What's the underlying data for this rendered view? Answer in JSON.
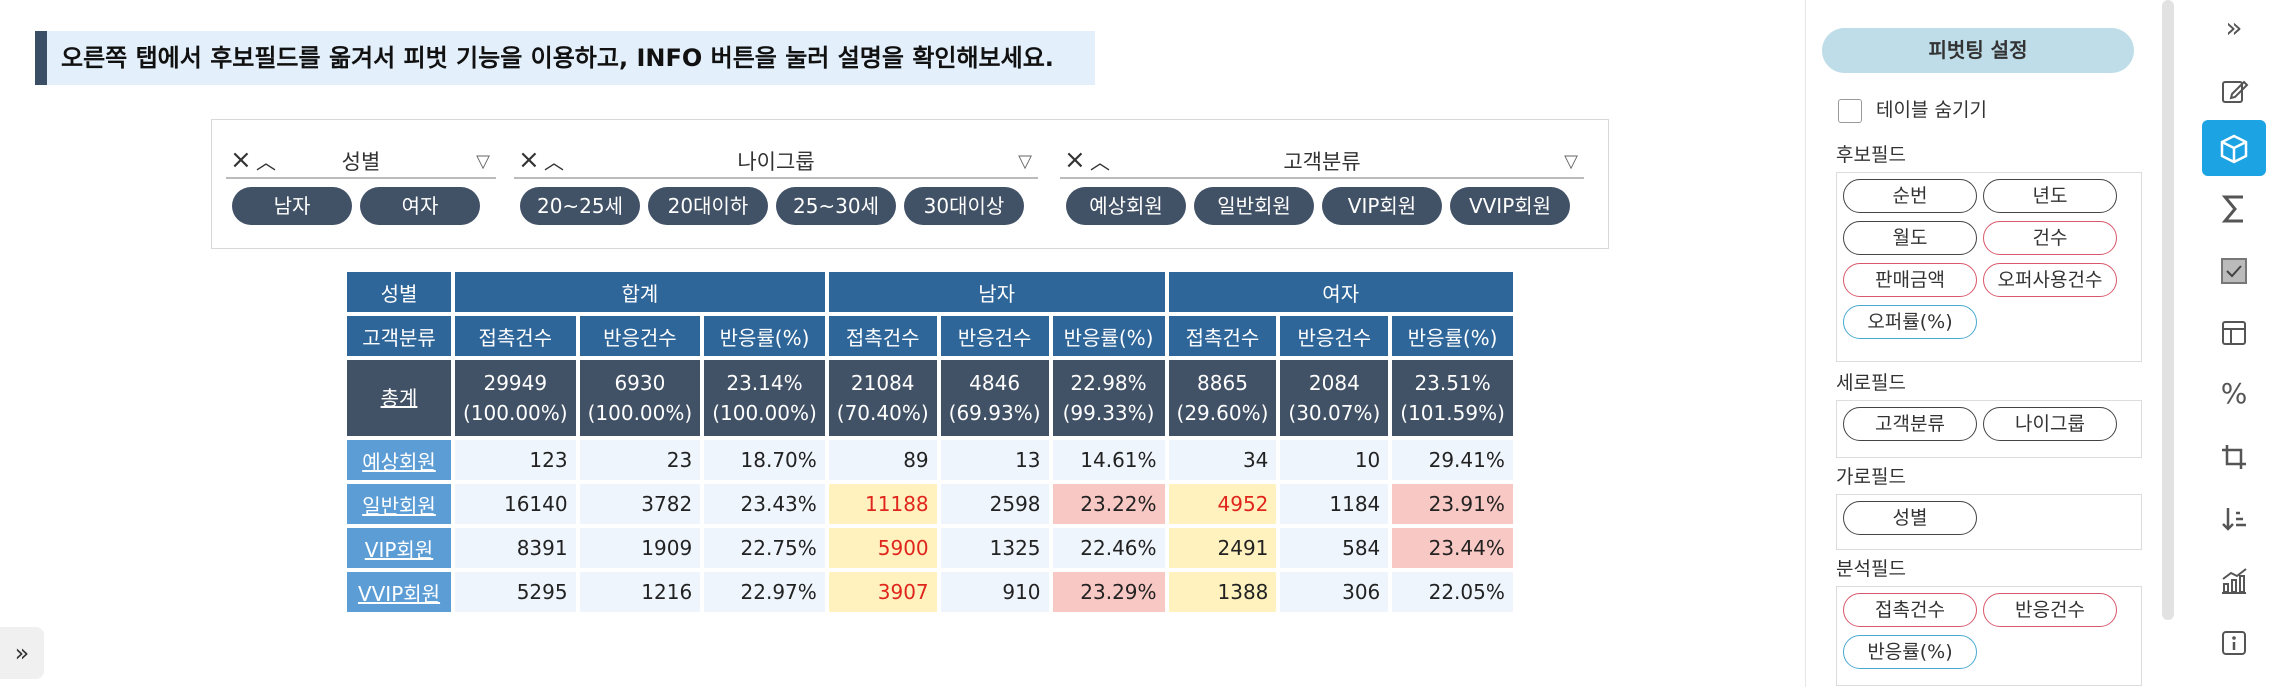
{
  "banner": "오른쪽 탭에서 후보필드를 옮겨서 피벗 기능을 이용하고, INFO 버튼을 눌러 설명을 확인해보세요.",
  "filters": [
    {
      "title": "성별",
      "chips": [
        "남자",
        "여자"
      ]
    },
    {
      "title": "나이그룹",
      "chips": [
        "20~25세",
        "20대이하",
        "25~30세",
        "30대이상"
      ]
    },
    {
      "title": "고객분류",
      "chips": [
        "예상회원",
        "일반회원",
        "VIP회원",
        "VVIP회원"
      ]
    }
  ],
  "table": {
    "corner_row": "성별",
    "corner_col": "고객분류",
    "groups": [
      "합계",
      "남자",
      "여자"
    ],
    "measures": [
      "접촉건수",
      "반응건수",
      "반응률(%)"
    ],
    "total_label": "총계",
    "totals": [
      "29949",
      "(100.00%)",
      "6930",
      "(100.00%)",
      "23.14%",
      "(100.00%)",
      "21084",
      "(70.40%)",
      "4846",
      "(69.93%)",
      "22.98%",
      "(99.33%)",
      "8865",
      "(29.60%)",
      "2084",
      "(30.07%)",
      "23.51%",
      "(101.59%)"
    ],
    "rows": [
      {
        "label": "예상회원",
        "values": [
          "123",
          "23",
          "18.70%",
          "89",
          "13",
          "14.61%",
          "34",
          "10",
          "29.41%"
        ]
      },
      {
        "label": "일반회원",
        "values": [
          "16140",
          "3782",
          "23.43%",
          "11188",
          "2598",
          "23.22%",
          "4952",
          "1184",
          "23.91%"
        ]
      },
      {
        "label": "VIP회원",
        "values": [
          "8391",
          "1909",
          "22.75%",
          "5900",
          "1325",
          "22.46%",
          "2491",
          "584",
          "23.44%"
        ]
      },
      {
        "label": "VVIP회원",
        "values": [
          "5295",
          "1216",
          "22.97%",
          "3907",
          "910",
          "23.29%",
          "1388",
          "306",
          "22.05%"
        ]
      }
    ]
  },
  "panel": {
    "title": "피벗팅 설정",
    "hide_table": "테이블 숨기기",
    "candidate_label": "후보필드",
    "candidate_fields": [
      "순번",
      "년도",
      "월도",
      "건수",
      "판매금액",
      "오퍼사용건수",
      "오퍼률(%)"
    ],
    "row_label": "세로필드",
    "row_fields": [
      "고객분류",
      "나이그룹"
    ],
    "col_label": "가로필드",
    "col_fields": [
      "성별"
    ],
    "analysis_label": "분석필드",
    "analysis_fields": [
      "접촉건수",
      "반응건수",
      "반응률(%)"
    ]
  },
  "icons": {
    "collapse": "»",
    "expand": "»"
  }
}
